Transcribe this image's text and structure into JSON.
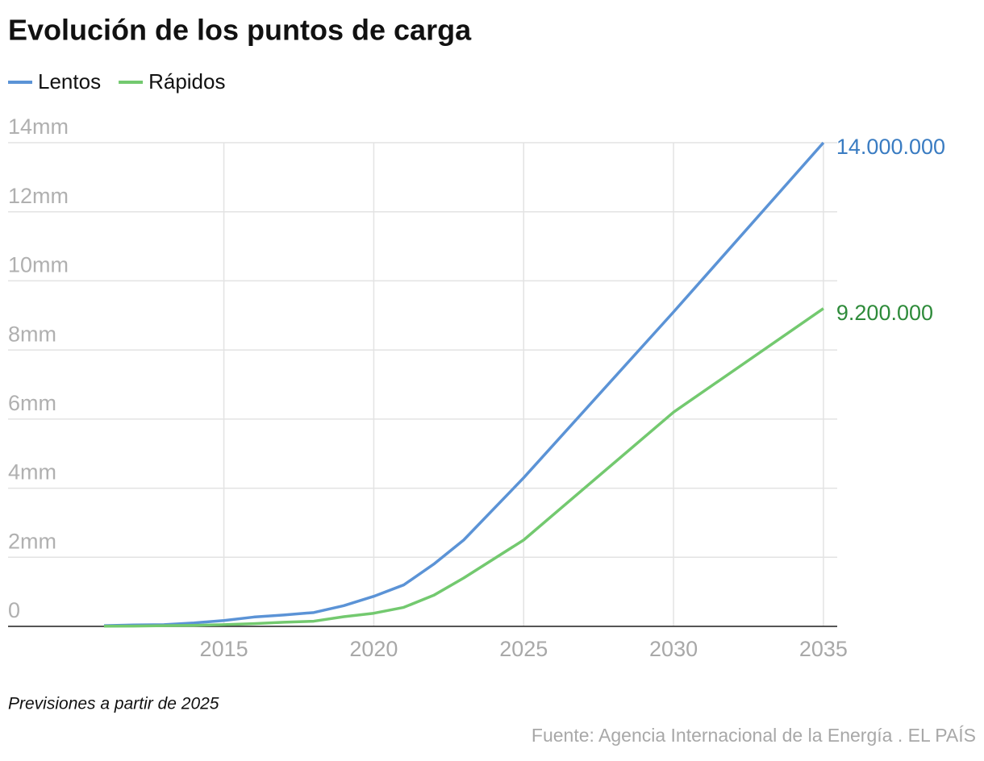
{
  "chart_data": {
    "type": "line",
    "title": "Evolución de los puntos de carga",
    "x": [
      2011,
      2012,
      2013,
      2014,
      2015,
      2016,
      2017,
      2018,
      2019,
      2020,
      2021,
      2022,
      2023,
      2025,
      2030,
      2035
    ],
    "series": [
      {
        "name": "Lentos",
        "color": "#5b93d6",
        "label_color": "#3a7cc2",
        "values": [
          20000,
          40000,
          50000,
          100000,
          170000,
          270000,
          330000,
          400000,
          600000,
          870000,
          1200000,
          1800000,
          2500000,
          4300000,
          9100000,
          14000000
        ],
        "value_labels": [
          null,
          null,
          null,
          null,
          null,
          null,
          null,
          null,
          null,
          null,
          null,
          null,
          null,
          null,
          null,
          "14.000.000"
        ]
      },
      {
        "name": "Rápidos",
        "color": "#73c96f",
        "label_color": "#2e8b3a",
        "values": [
          5000,
          10000,
          20000,
          30000,
          50000,
          80000,
          120000,
          150000,
          280000,
          380000,
          550000,
          900000,
          1400000,
          2500000,
          6200000,
          9200000
        ],
        "value_labels": [
          null,
          null,
          null,
          null,
          null,
          null,
          null,
          null,
          null,
          null,
          null,
          null,
          null,
          null,
          null,
          "9.200.000"
        ]
      }
    ],
    "xlim": [
      2007.8,
      2035.46
    ],
    "xticks": [
      2015,
      2020,
      2025,
      2030,
      2035
    ],
    "ylim": [
      0,
      14000000
    ],
    "yticks": [
      {
        "value": 0,
        "label": "0"
      },
      {
        "value": 2000000,
        "label": "2mm"
      },
      {
        "value": 4000000,
        "label": "4mm"
      },
      {
        "value": 6000000,
        "label": "6mm"
      },
      {
        "value": 8000000,
        "label": "8mm"
      },
      {
        "value": 10000000,
        "label": "10mm"
      },
      {
        "value": 12000000,
        "label": "12mm"
      },
      {
        "value": 14000000,
        "label": "14mm"
      }
    ],
    "grid": true,
    "note": "Previsiones a partir de 2025",
    "source": "Fuente: Agencia Internacional de la Energía . EL PAÍS"
  }
}
